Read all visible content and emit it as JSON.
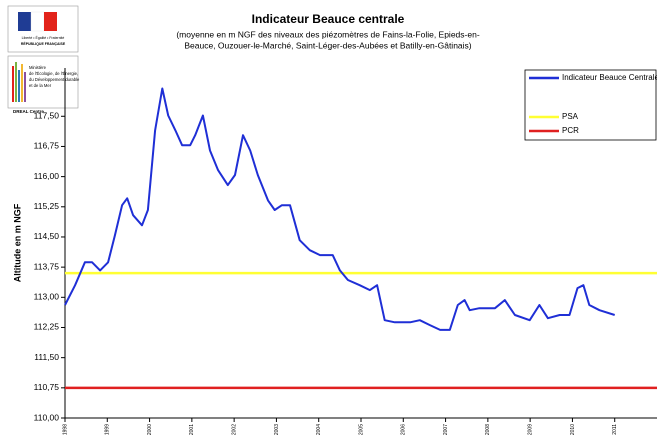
{
  "logo": {
    "motto": "Liberté • Égalité • Fraternité",
    "republic": "RÉPUBLIQUE FRANÇAISE",
    "ministry": [
      "Ministère",
      "de l'Écologie, de l'Énergie,",
      "du Développement durable",
      "et de la Mer"
    ],
    "office": "DREAL Centre"
  },
  "chart_data": {
    "type": "line",
    "title": "Indicateur Beauce centrale",
    "subtitle": [
      "(moyenne en m NGF des niveaux des piézomètres de Fains-la-Folie, Epieds-en-",
      "Beauce, Ouzouer-le-Marché, Saint-Léger-des-Aubées et Batilly-en-Gâtinais)"
    ],
    "y_label": "Altitude en m NGF",
    "xlim": [
      1998,
      2012
    ],
    "xticks": [
      1998,
      1999,
      2000,
      2001,
      2002,
      2003,
      2004,
      2005,
      2006,
      2007,
      2008,
      2009,
      2010,
      2011
    ],
    "ylim": [
      110,
      118.7
    ],
    "yticks": [
      {
        "value": 110,
        "label": "110,00"
      },
      {
        "value": 110.75,
        "label": "110,75"
      },
      {
        "value": 111.5,
        "label": "111,50"
      },
      {
        "value": 112.25,
        "label": "112,25"
      },
      {
        "value": 113,
        "label": "113,00"
      },
      {
        "value": 113.75,
        "label": "113,75"
      },
      {
        "value": 114.5,
        "label": "114,50"
      },
      {
        "value": 115.25,
        "label": "115,25"
      },
      {
        "value": 116,
        "label": "116,00"
      },
      {
        "value": 116.75,
        "label": "116,75"
      },
      {
        "value": 117.5,
        "label": "117,50"
      }
    ],
    "series": [
      {
        "name": "Indicateur Beauce Centrale",
        "color": "#1f2fd6",
        "x": [
          1998.0,
          1998.24,
          1998.47,
          1998.64,
          1998.83,
          1999.02,
          1999.18,
          1999.35,
          1999.47,
          1999.61,
          1999.82,
          1999.96,
          2000.13,
          2000.3,
          2000.44,
          2000.61,
          2000.77,
          2000.96,
          2001.08,
          2001.26,
          2001.43,
          2001.62,
          2001.85,
          2002.02,
          2002.21,
          2002.38,
          2002.56,
          2002.8,
          2002.96,
          2003.13,
          2003.32,
          2003.55,
          2003.79,
          2004.03,
          2004.33,
          2004.5,
          2004.69,
          2004.97,
          2005.21,
          2005.38,
          2005.56,
          2005.8,
          2006.16,
          2006.39,
          2006.63,
          2006.87,
          2007.1,
          2007.29,
          2007.45,
          2007.57,
          2007.8,
          2008.17,
          2008.4,
          2008.64,
          2008.99,
          2009.22,
          2009.42,
          2009.7,
          2009.93,
          2010.12,
          2010.26,
          2010.4,
          2010.64,
          2011.0
        ],
        "values": [
          112.81,
          113.3,
          113.87,
          113.87,
          113.67,
          113.87,
          114.54,
          115.29,
          115.46,
          115.04,
          114.79,
          115.17,
          117.15,
          118.19,
          117.52,
          117.15,
          116.78,
          116.78,
          117.03,
          117.52,
          116.65,
          116.16,
          115.79,
          116.04,
          117.03,
          116.65,
          116.04,
          115.41,
          115.17,
          115.29,
          115.29,
          114.42,
          114.17,
          114.05,
          114.05,
          113.67,
          113.43,
          113.3,
          113.18,
          113.3,
          112.43,
          112.38,
          112.38,
          112.43,
          112.31,
          112.19,
          112.19,
          112.81,
          112.93,
          112.68,
          112.73,
          112.73,
          112.93,
          112.56,
          112.43,
          112.81,
          112.48,
          112.56,
          112.56,
          113.23,
          113.3,
          112.81,
          112.68,
          112.56
        ]
      }
    ],
    "reference_lines": [
      {
        "name": "PSA",
        "color": "#ffff33",
        "value": 113.6
      },
      {
        "name": "PCR",
        "color": "#e02020",
        "value": 110.75
      }
    ],
    "legend": "upper right"
  }
}
